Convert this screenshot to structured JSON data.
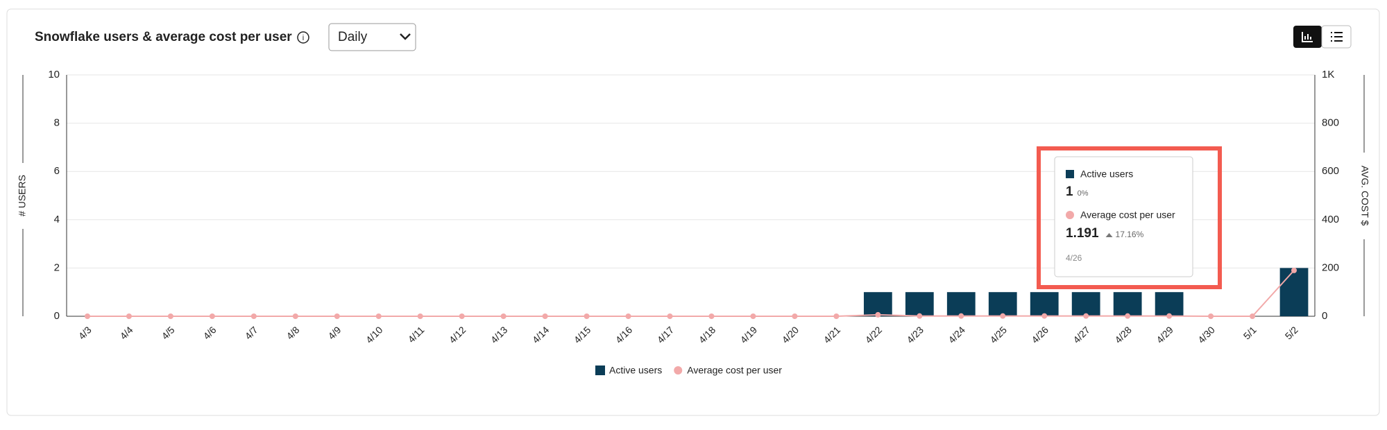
{
  "chart_data": {
    "type": "bar",
    "title": "Snowflake users & average cost per user",
    "period": "Daily",
    "categories": [
      "4/3",
      "4/4",
      "4/5",
      "4/6",
      "4/7",
      "4/8",
      "4/9",
      "4/10",
      "4/11",
      "4/12",
      "4/13",
      "4/14",
      "4/15",
      "4/16",
      "4/17",
      "4/18",
      "4/19",
      "4/20",
      "4/21",
      "4/22",
      "4/23",
      "4/24",
      "4/25",
      "4/26",
      "4/27",
      "4/28",
      "4/29",
      "4/30",
      "5/1",
      "5/2"
    ],
    "series": [
      {
        "name": "Active users",
        "type": "bar",
        "color": "#0b3d57",
        "values": [
          0,
          0,
          0,
          0,
          0,
          0,
          0,
          0,
          0,
          0,
          0,
          0,
          0,
          0,
          0,
          0,
          0,
          0,
          0,
          1,
          1,
          1,
          1,
          1,
          1,
          1,
          1,
          0,
          0,
          2
        ]
      },
      {
        "name": "Average cost per user",
        "type": "line",
        "axis": "y2",
        "color": "#f2a9a9",
        "values": [
          0,
          0,
          0,
          0,
          0,
          0,
          0,
          0,
          0,
          0,
          0,
          0,
          0,
          0,
          0,
          0,
          0,
          0,
          0,
          6,
          1,
          1,
          1.016,
          1.191,
          1,
          1,
          1,
          0,
          0,
          190
        ]
      }
    ],
    "ylabel": "# USERS",
    "y2label": "AVG. COST $",
    "ylim": [
      0,
      10
    ],
    "yticks": [
      0,
      2,
      4,
      6,
      8,
      10
    ],
    "y2lim": [
      0,
      1000
    ],
    "y2ticks": [
      0,
      200,
      400,
      600,
      800,
      {
        "value": 1000,
        "label": "1K"
      }
    ],
    "grid": true,
    "tooltip": {
      "category_index": 23,
      "changes": [
        "0%",
        "17.16%"
      ]
    }
  }
}
